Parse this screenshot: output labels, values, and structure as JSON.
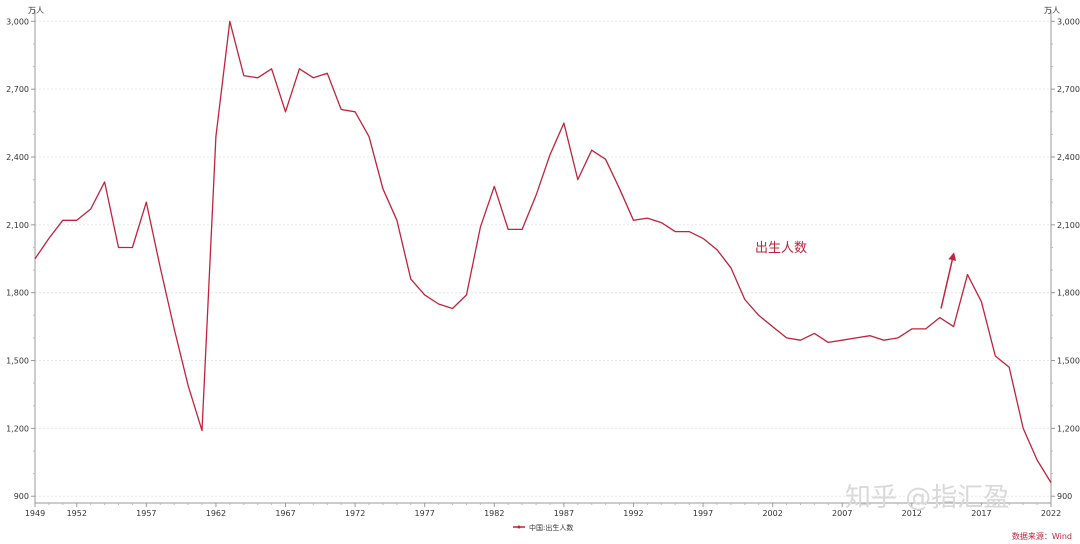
{
  "chart_data": {
    "type": "line",
    "title": "",
    "xlabel": "",
    "ylabel": "",
    "y_unit_left": "万人",
    "y_unit_right": "万人",
    "xlim": [
      1949,
      2022
    ],
    "ylim": [
      870,
      3050
    ],
    "y_ticks": [
      900,
      1200,
      1500,
      1800,
      2100,
      2400,
      2700,
      3000
    ],
    "y_tick_labels": [
      "900",
      "1,200",
      "1,500",
      "1,800",
      "2,100",
      "2,400",
      "2,700",
      "3,000"
    ],
    "x_ticks": [
      1949,
      1952,
      1957,
      1962,
      1967,
      1972,
      1977,
      1982,
      1987,
      1992,
      1997,
      2002,
      2007,
      2012,
      2017,
      2022
    ],
    "x_tick_labels": [
      "1949",
      "1952",
      "1957",
      "1962",
      "1967",
      "1972",
      "1977",
      "1982",
      "1987",
      "1992",
      "1997",
      "2002",
      "2007",
      "2012",
      "2017",
      "2022"
    ],
    "grid": true,
    "legend_position": "bottom-center",
    "series": [
      {
        "name": "中国:出生人数",
        "color": "#c0233a",
        "x": [
          1949,
          1950,
          1951,
          1952,
          1953,
          1954,
          1955,
          1956,
          1957,
          1958,
          1959,
          1960,
          1961,
          1962,
          1963,
          1964,
          1965,
          1966,
          1967,
          1968,
          1969,
          1970,
          1971,
          1972,
          1973,
          1974,
          1975,
          1976,
          1977,
          1978,
          1979,
          1980,
          1981,
          1982,
          1983,
          1984,
          1985,
          1986,
          1987,
          1988,
          1989,
          1990,
          1991,
          1992,
          1993,
          1994,
          1995,
          1996,
          1997,
          1998,
          1999,
          2000,
          2001,
          2002,
          2003,
          2004,
          2005,
          2006,
          2007,
          2008,
          2009,
          2010,
          2011,
          2012,
          2013,
          2014,
          2015,
          2016,
          2017,
          2018,
          2019,
          2020,
          2021,
          2022
        ],
        "values": [
          1950,
          2040,
          2120,
          2120,
          2170,
          2290,
          2000,
          2000,
          2200,
          1910,
          1640,
          1390,
          1190,
          2490,
          3000,
          2760,
          2750,
          2790,
          2600,
          2790,
          2750,
          2770,
          2610,
          2600,
          2490,
          2260,
          2120,
          1860,
          1790,
          1750,
          1730,
          1790,
          2090,
          2270,
          2080,
          2080,
          2230,
          2410,
          2550,
          2300,
          2430,
          2390,
          2260,
          2120,
          2130,
          2110,
          2070,
          2070,
          2040,
          1990,
          1910,
          1770,
          1700,
          1650,
          1600,
          1590,
          1620,
          1580,
          1590,
          1600,
          1610,
          1590,
          1600,
          1640,
          1640,
          1690,
          1650,
          1880,
          1760,
          1520,
          1470,
          1200,
          1060,
          960
        ]
      }
    ],
    "annotations": [
      {
        "text": "出生人数",
        "x": 2000,
        "y": 2040
      }
    ],
    "arrow": {
      "from": [
        2014.1,
        1730
      ],
      "to": [
        2015,
        1970
      ]
    }
  },
  "footer": {
    "source": "数据来源：Wind",
    "watermark": "知乎 @指汇盈"
  }
}
